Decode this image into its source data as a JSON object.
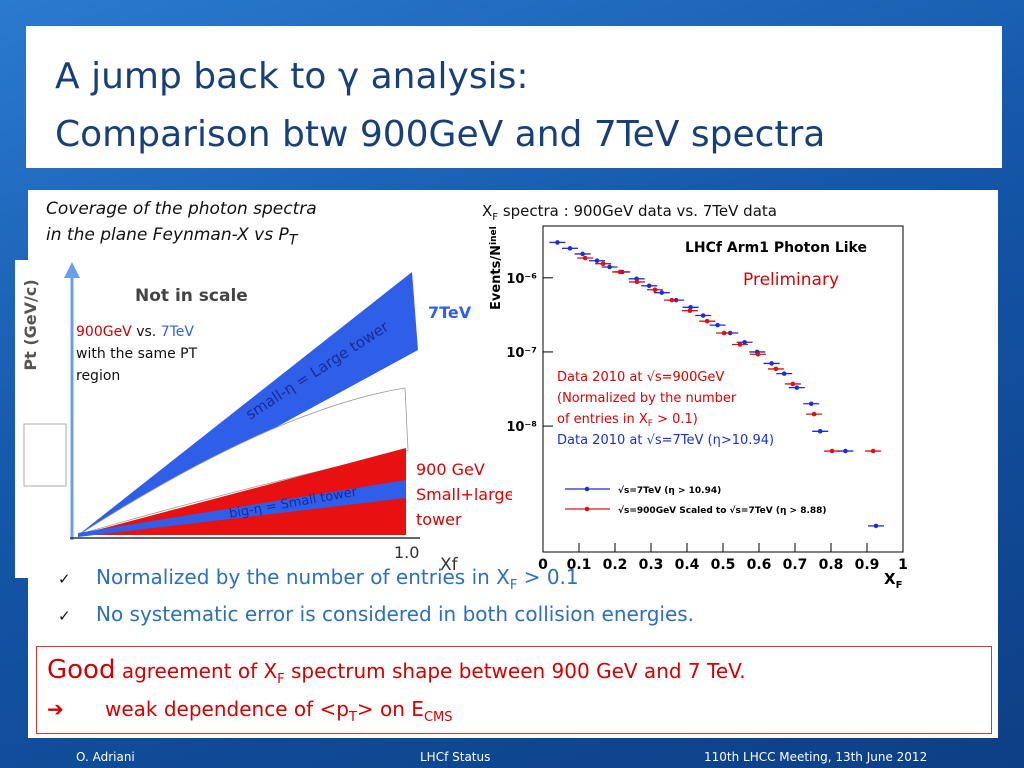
{
  "header": {
    "title_line1": "A jump back to γ analysis:",
    "title_line2": "Comparison btw 900GeV and 7TeV spectra"
  },
  "left_caption": {
    "line1": "Coverage of the photon spectra",
    "line2": "in the plane Feynman-X vs P",
    "line2_sub": "T"
  },
  "diagram": {
    "y_axis_label": "Pt (GeV/c)",
    "x_axis_label": "Xf",
    "x_end_label": "1.0",
    "not_in_scale": "Not in scale",
    "label_7tev": "7TeV",
    "band_large": "small-η = Large tower",
    "band_small": "big-η = Small tower",
    "note_a": "900GeV",
    "note_vs": " vs. ",
    "note_b": "7TeV",
    "note_line2": "with the same PT",
    "note_line3": "region",
    "red_line1": "900 GeV",
    "red_line2": "Small+large",
    "red_line3": "tower"
  },
  "plot_caption": {
    "pre": "X",
    "sub": "F",
    "post": " spectra : 900GeV data vs. 7TeV data"
  },
  "chart_data": {
    "type": "scatter",
    "title": "LHCf Arm1 Photon Like",
    "annotation": "Preliminary",
    "y_label": "Events/N",
    "y_label_sub": "inel",
    "x_label": "X",
    "x_label_sub": "F",
    "log_y": true,
    "xlim": [
      0,
      1
    ],
    "ylim": [
      2e-10,
      5e-06
    ],
    "xticks": [
      0,
      0.1,
      0.2,
      0.3,
      0.4,
      0.5,
      0.6,
      0.7,
      0.8,
      0.9,
      1
    ],
    "yticks": [
      {
        "value": 1e-06,
        "label": "10⁻⁶"
      },
      {
        "value": 1e-07,
        "label": "10⁻⁷"
      },
      {
        "value": 1e-08,
        "label": "10⁻⁸"
      }
    ],
    "series": [
      {
        "name": "√s=7TeV (η > 10.94)",
        "color": "#1a2fd6",
        "x": [
          0.04,
          0.075,
          0.11,
          0.15,
          0.185,
          0.22,
          0.26,
          0.295,
          0.33,
          0.37,
          0.41,
          0.445,
          0.485,
          0.52,
          0.56,
          0.595,
          0.635,
          0.67,
          0.705,
          0.745,
          0.77,
          0.84,
          0.925
        ],
        "values": [
          3e-06,
          2.5e-06,
          2.1e-06,
          1.7e-06,
          1.4e-06,
          1.2e-06,
          9.7e-07,
          7.8e-07,
          6.3e-07,
          5e-07,
          4e-07,
          3.1e-07,
          2.3e-07,
          1.8e-07,
          1.35e-07,
          1e-07,
          7e-08,
          5.1e-08,
          3.3e-08,
          2e-08,
          8.5e-09,
          4.6e-09,
          4.5e-10
        ]
      },
      {
        "name": "√s=900GeV Scaled to √s=7TeV (η > 8.88)",
        "color": "#e01010",
        "x": [
          0.117,
          0.167,
          0.214,
          0.261,
          0.311,
          0.358,
          0.408,
          0.456,
          0.503,
          0.547,
          0.597,
          0.647,
          0.694,
          0.753,
          0.803,
          0.917
        ],
        "values": [
          1.85e-06,
          1.55e-06,
          1.2e-06,
          8.8e-07,
          6.9e-07,
          5e-07,
          3.6e-07,
          2.6e-07,
          1.8e-07,
          1.26e-07,
          9.3e-08,
          5.9e-08,
          3.7e-08,
          1.45e-08,
          4.6e-09,
          4.6e-09
        ]
      }
    ],
    "notes": {
      "red1": "Data 2010 at √s=900GeV",
      "red2": "(Normalized by the number",
      "red3a": " of entries in X",
      "red3sub": "F",
      "red3b": " > 0.1)",
      "blue": "Data 2010 at √s=7TeV (η>10.94)"
    }
  },
  "bullet_mark": "✓",
  "bullets": [
    {
      "text": "Normalized by the number of entries in X",
      "sub": "F",
      "tail": " > 0.1"
    },
    {
      "text": "No systematic error is considered in both collision energies."
    }
  ],
  "conclusion": {
    "big": "Good",
    "line1": " agreement of X",
    "line1_sub": "F",
    "line1_tail": " spectrum shape between 900 GeV and 7 TeV.",
    "arrow": "➔",
    "line2": "weak dependence of <p",
    "line2_sub": "T",
    "line2_mid": "> on E",
    "line2_sub2": "CMS"
  },
  "footer": {
    "left": "O. Adriani",
    "center": "LHCf Status",
    "right": "110th LHCC Meeting, 13th June 2012"
  }
}
